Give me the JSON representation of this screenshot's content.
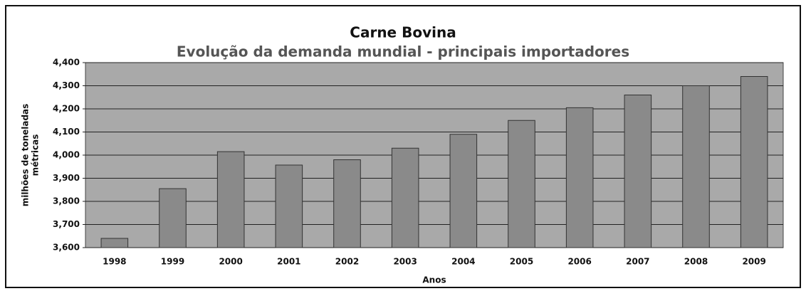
{
  "chart_data": {
    "type": "bar",
    "title": "Carne Bovina",
    "subtitle": "Evolução da demanda mundial - principais importadores",
    "xlabel": "Anos",
    "ylabel": [
      "milhões de toneladas",
      "métricas"
    ],
    "categories": [
      "1998",
      "1999",
      "2000",
      "2001",
      "2002",
      "2003",
      "2004",
      "2005",
      "2006",
      "2007",
      "2008",
      "2009"
    ],
    "values": [
      3640,
      3855,
      4015,
      3957,
      3980,
      4030,
      4090,
      4150,
      4205,
      4260,
      4300,
      4340
    ],
    "color": "#8a8a8a",
    "ylim": [
      3600,
      4400
    ],
    "yticks": [
      {
        "value": 3600,
        "label": "3,600"
      },
      {
        "value": 3700,
        "label": "3,700"
      },
      {
        "value": 3800,
        "label": "3,800"
      },
      {
        "value": 3900,
        "label": "3,900"
      },
      {
        "value": 4000,
        "label": "4,000"
      },
      {
        "value": 4100,
        "label": "4,100"
      },
      {
        "value": 4200,
        "label": "4,200"
      },
      {
        "value": 4300,
        "label": "4,300"
      },
      {
        "value": 4400,
        "label": "4,400"
      }
    ],
    "grid": true
  }
}
